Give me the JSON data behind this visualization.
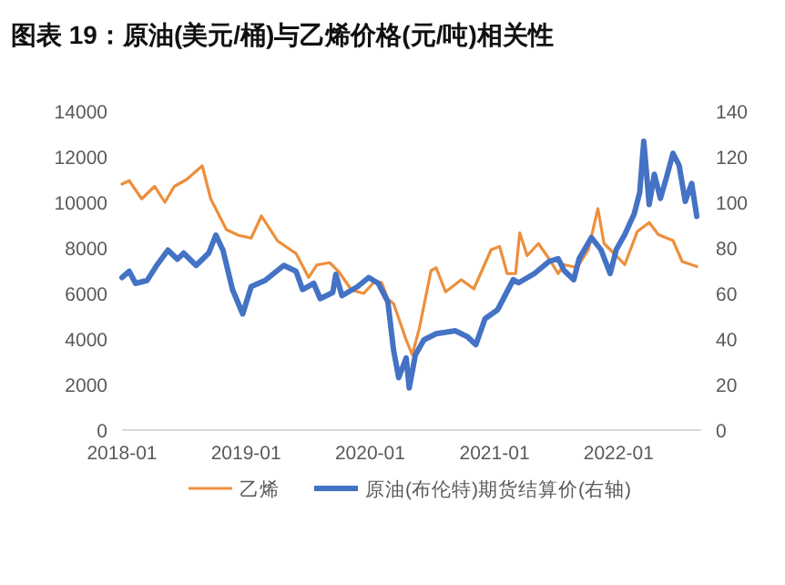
{
  "chart_data": {
    "type": "line",
    "title": "图表 19：原油(美元/桶)与乙烯价格(元/吨)相关性",
    "xlim": [
      "2018-01",
      "2022-09"
    ],
    "xticks": [
      "2018-01",
      "2019-01",
      "2020-01",
      "2021-01",
      "2022-01"
    ],
    "ylim": [
      0,
      14000
    ],
    "yticks": [
      0,
      2000,
      4000,
      6000,
      8000,
      10000,
      12000,
      14000
    ],
    "y2lim": [
      0,
      140
    ],
    "y2ticks": [
      0,
      20,
      40,
      60,
      80,
      100,
      120,
      140
    ],
    "legend": "bottom",
    "series": [
      {
        "name": "乙烯",
        "color": "#ed8f3b",
        "x": [
          "2018-01-01",
          "2018-01-22",
          "2018-02-28",
          "2018-04-07",
          "2018-05-07",
          "2018-06-04",
          "2018-07-10",
          "2018-08-25",
          "2018-09-19",
          "2018-11-04",
          "2018-12-10",
          "2019-01-16",
          "2019-02-15",
          "2019-04-04",
          "2019-05-28",
          "2019-07-04",
          "2019-07-28",
          "2019-09-04",
          "2019-10-01",
          "2019-11-07",
          "2019-12-13",
          "2020-01-16",
          "2020-02-04",
          "2020-02-22",
          "2020-03-10",
          "2020-04-16",
          "2020-05-04",
          "2020-05-25",
          "2020-06-28",
          "2020-07-13",
          "2020-08-10",
          "2020-09-25",
          "2020-11-01",
          "2020-12-22",
          "2021-01-16",
          "2021-02-07",
          "2021-03-04",
          "2021-03-16",
          "2021-04-07",
          "2021-05-10",
          "2021-06-10",
          "2021-07-07",
          "2021-07-25",
          "2021-09-01",
          "2021-10-04",
          "2021-11-01",
          "2021-11-19",
          "2021-12-25",
          "2022-01-19",
          "2022-02-25",
          "2022-04-01",
          "2022-04-28",
          "2022-06-10",
          "2022-07-07",
          "2022-08-19"
        ],
        "values": [
          10800,
          10950,
          10150,
          10700,
          10000,
          10700,
          11000,
          11600,
          10150,
          8800,
          8550,
          8430,
          9400,
          8300,
          7750,
          6700,
          7250,
          7350,
          6950,
          6150,
          6000,
          6550,
          6470,
          5750,
          5550,
          3960,
          3300,
          4490,
          7000,
          7130,
          6070,
          6600,
          6200,
          7920,
          8060,
          6870,
          6870,
          8660,
          7660,
          8190,
          7530,
          6870,
          7260,
          7130,
          7920,
          9720,
          8190,
          7660,
          7260,
          8720,
          9110,
          8580,
          8320,
          7400,
          7180
        ]
      },
      {
        "name": "原油(布伦特)期货结算价(右轴)",
        "color": "#4472c4",
        "axis": "y2",
        "x": [
          "2018-01-01",
          "2018-01-22",
          "2018-02-10",
          "2018-03-16",
          "2018-04-13",
          "2018-05-16",
          "2018-06-13",
          "2018-07-01",
          "2018-08-07",
          "2018-09-13",
          "2018-10-04",
          "2018-10-25",
          "2018-11-22",
          "2018-12-22",
          "2019-01-16",
          "2019-02-26",
          "2019-04-22",
          "2019-05-28",
          "2019-06-16",
          "2019-07-19",
          "2019-08-07",
          "2019-09-13",
          "2019-09-22",
          "2019-10-10",
          "2019-11-25",
          "2019-12-28",
          "2020-01-25",
          "2020-02-22",
          "2020-03-10",
          "2020-03-25",
          "2020-04-16",
          "2020-04-25",
          "2020-05-13",
          "2020-06-07",
          "2020-07-13",
          "2020-09-07",
          "2020-10-13",
          "2020-11-07",
          "2020-12-04",
          "2021-01-10",
          "2021-02-25",
          "2021-03-13",
          "2021-04-28",
          "2021-06-10",
          "2021-07-07",
          "2021-07-25",
          "2021-08-22",
          "2021-09-07",
          "2021-10-13",
          "2021-11-10",
          "2021-12-07",
          "2021-12-25",
          "2022-01-19",
          "2022-02-16",
          "2022-03-04",
          "2022-03-16",
          "2022-04-01",
          "2022-04-16",
          "2022-05-04",
          "2022-05-22",
          "2022-06-10",
          "2022-06-28",
          "2022-07-16",
          "2022-08-04",
          "2022-08-19"
        ],
        "values": [
          67,
          69.7,
          64.4,
          65.7,
          72.3,
          79,
          75,
          77.7,
          72.3,
          77.7,
          85.6,
          79,
          61.7,
          51,
          63,
          65.7,
          72.3,
          69.7,
          61.7,
          64.4,
          57.7,
          60.4,
          68.4,
          59,
          63,
          67,
          64.4,
          56.4,
          35,
          23,
          31.7,
          18.5,
          33,
          39.6,
          42.3,
          43.6,
          41,
          37.5,
          48.9,
          52.8,
          66,
          64.7,
          68.7,
          74,
          75.3,
          70,
          66,
          75.3,
          84.5,
          79.2,
          68.7,
          79.2,
          85.8,
          95,
          104.3,
          126.8,
          99,
          112.3,
          101.7,
          111,
          121.5,
          116.2,
          100.4,
          108.3,
          93.8
        ]
      }
    ]
  }
}
